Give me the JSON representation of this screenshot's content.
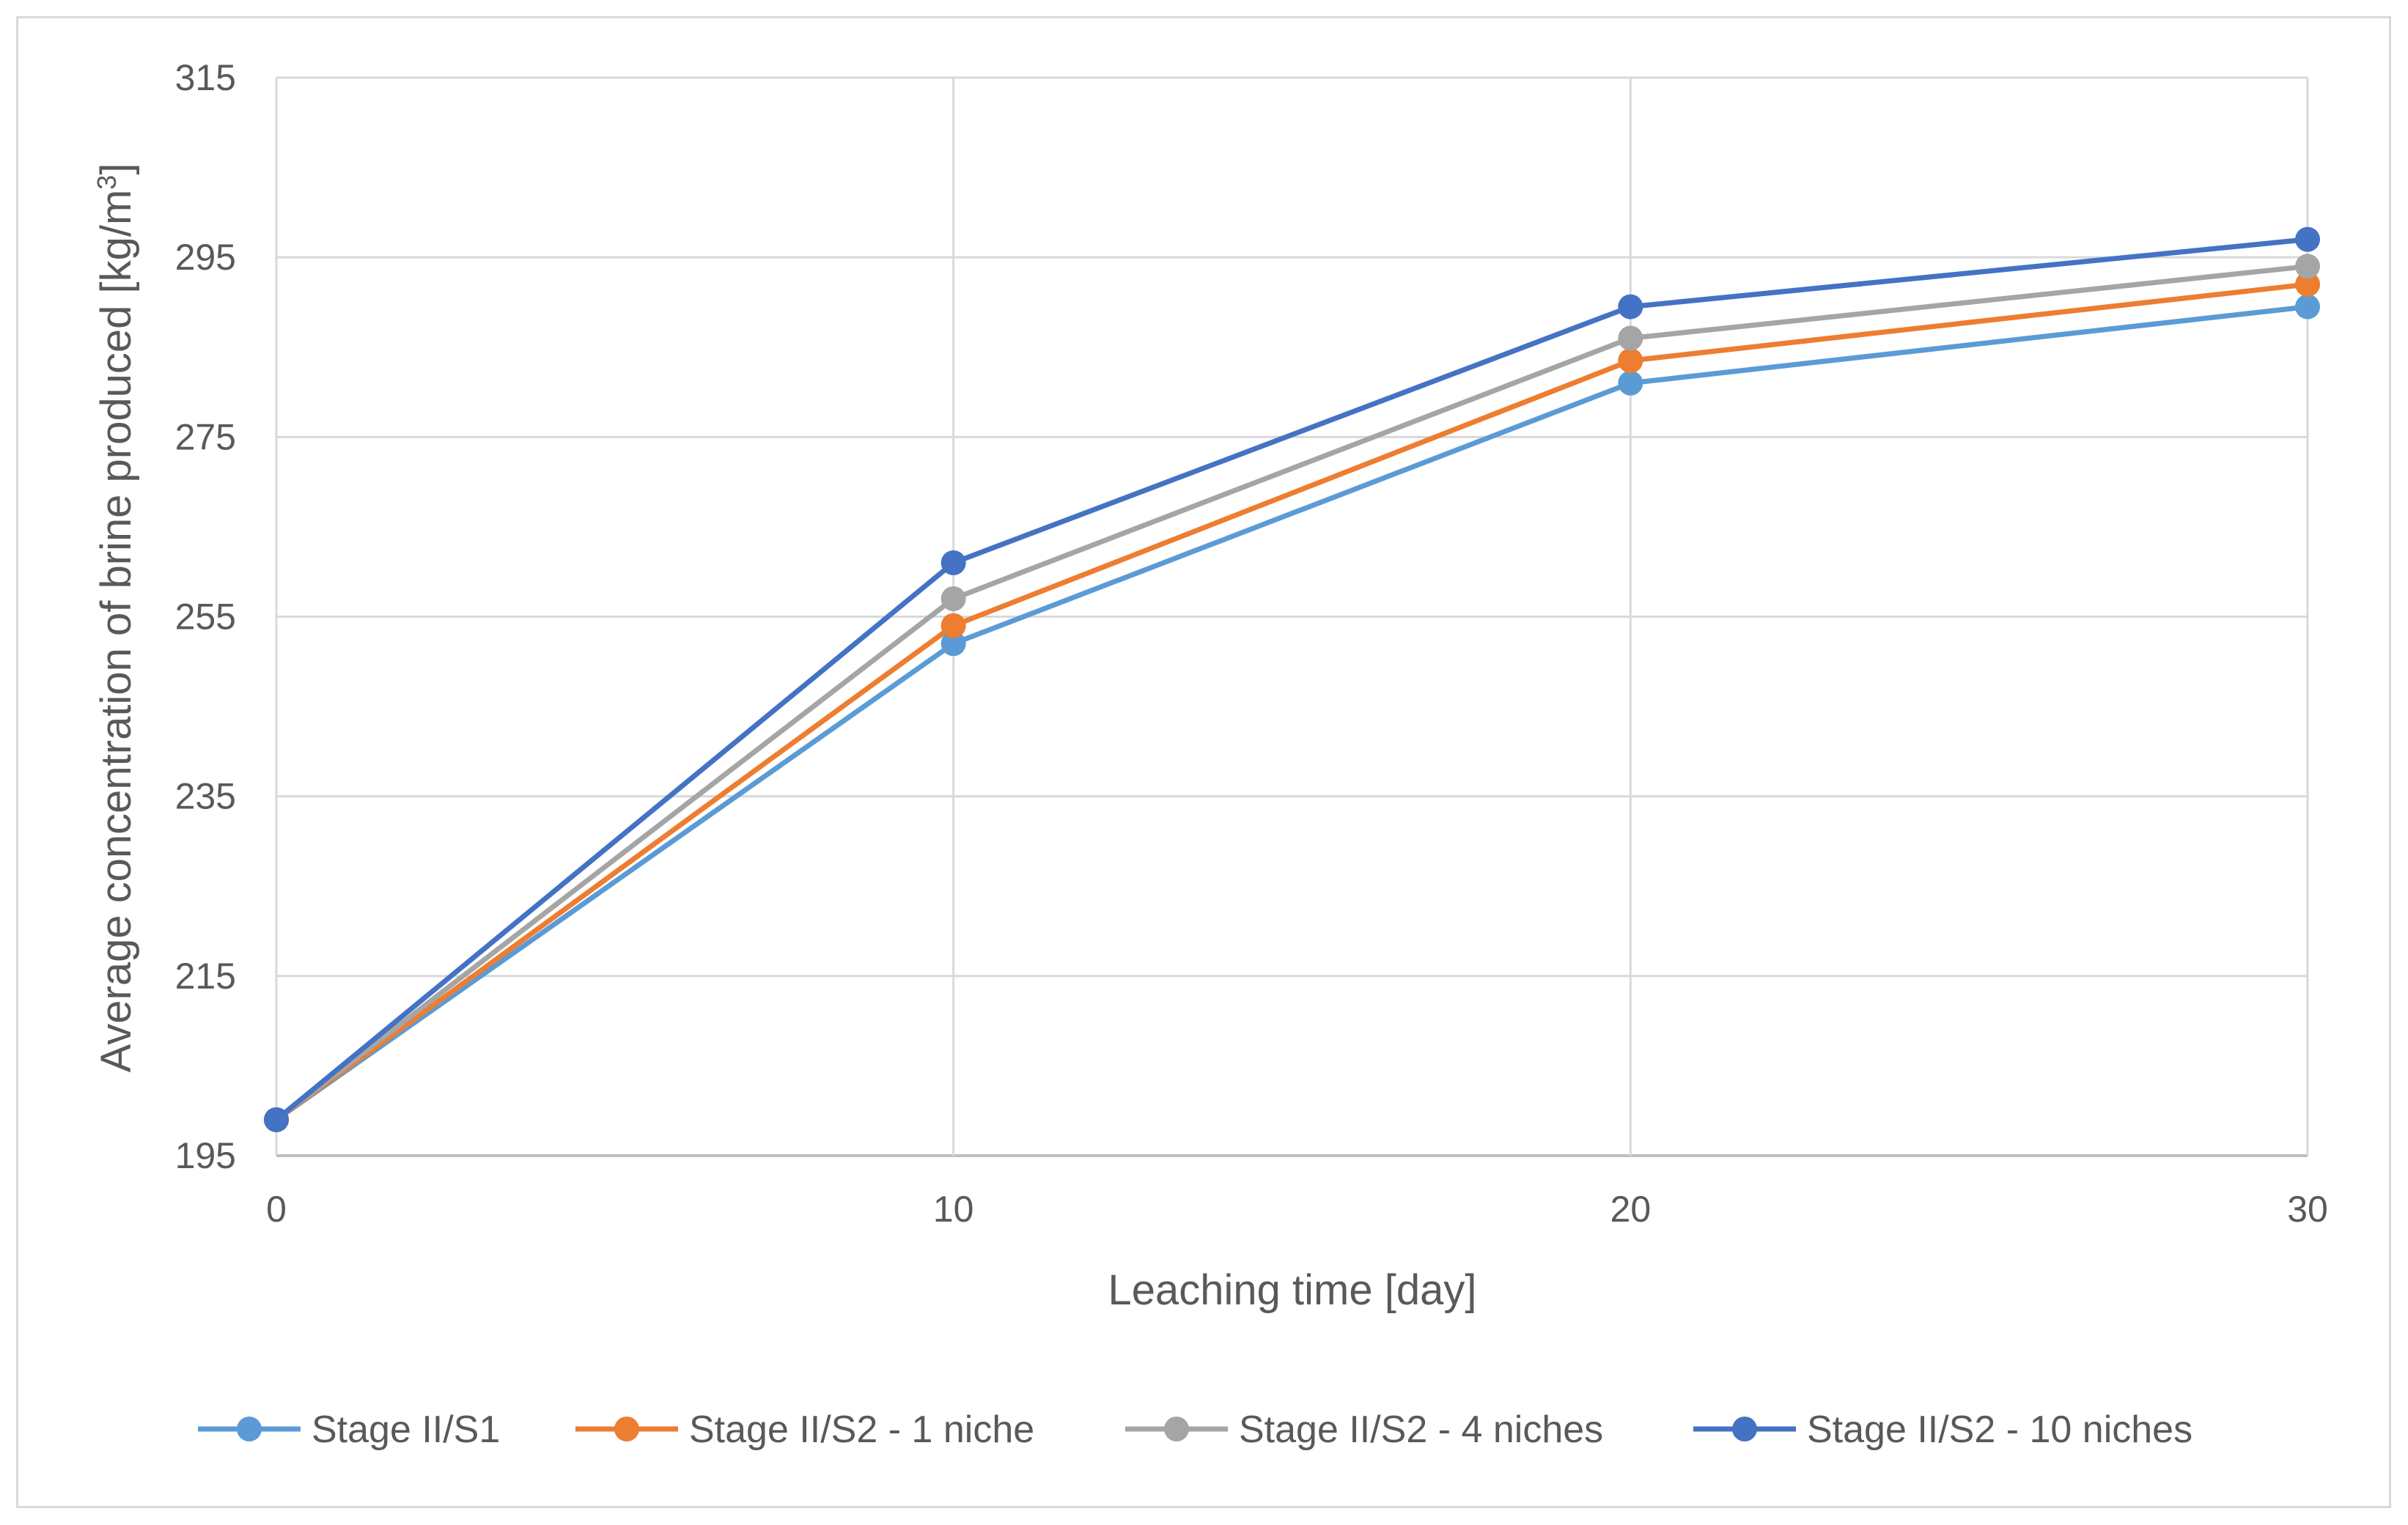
{
  "chart_data": {
    "type": "line",
    "xlabel": "Leaching time [day]",
    "ylabel": "Average concentration of brine produced [kg/m",
    "ylabel_sup": "3",
    "ylabel_end": "]",
    "x": [
      0,
      10,
      20,
      30
    ],
    "x_ticks": [
      "0",
      "10",
      "20",
      "30"
    ],
    "y_ticks": [
      "195",
      "215",
      "235",
      "255",
      "275",
      "295",
      "315"
    ],
    "xlim": [
      0,
      30
    ],
    "ylim": [
      195,
      315
    ],
    "grid": true,
    "legend_position": "bottom",
    "series": [
      {
        "name": "Stage II/S1",
        "color": "#5B9BD5",
        "values": [
          199,
          252,
          281,
          289.5
        ]
      },
      {
        "name": "Stage II/S2 - 1 niche",
        "color": "#ED7D31",
        "values": [
          199,
          254,
          283.5,
          292
        ]
      },
      {
        "name": "Stage II/S2 - 4 niches",
        "color": "#A5A5A5",
        "values": [
          199,
          257,
          286,
          294
        ]
      },
      {
        "name": "Stage II/S2 - 10 niches",
        "color": "#4472C4",
        "values": [
          199,
          261,
          289.5,
          297
        ]
      }
    ]
  }
}
